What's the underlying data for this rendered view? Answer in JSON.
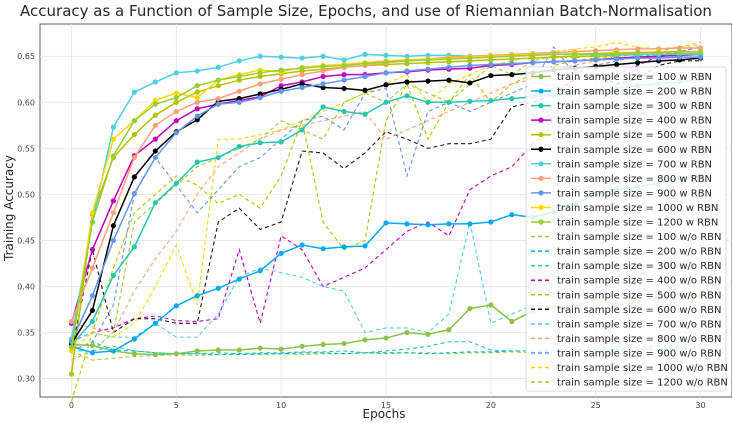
{
  "chart_data": {
    "type": "line",
    "title": "Accuracy as a Function of Sample Size, Epochs, and use of Riemannian Batch-Normalisation",
    "xlabel": "Epochs",
    "ylabel": "Training Accuracy",
    "xlim": [
      -1.5,
      31.5
    ],
    "ylim": [
      0.28,
      0.685
    ],
    "xticks": [
      0,
      5,
      10,
      15,
      20,
      25,
      30
    ],
    "yticks": [
      0.3,
      0.35,
      0.4,
      0.45,
      0.5,
      0.55,
      0.6,
      0.65
    ],
    "grid": true,
    "legend_position": "right",
    "x": [
      0,
      1,
      2,
      3,
      4,
      5,
      6,
      7,
      8,
      9,
      10,
      11,
      12,
      13,
      14,
      15,
      16,
      17,
      18,
      19,
      20,
      21,
      22,
      23,
      24,
      25,
      26,
      27,
      28,
      29,
      30
    ],
    "series": [
      {
        "name": "train sample size = 100 w RBN",
        "color": "#8bc34a",
        "style": "solid",
        "marker": true,
        "values": [
          0.337,
          0.336,
          0.33,
          0.327,
          0.326,
          0.327,
          0.33,
          0.331,
          0.331,
          0.333,
          0.332,
          0.335,
          0.337,
          0.338,
          0.342,
          0.344,
          0.35,
          0.348,
          0.353,
          0.376,
          0.38,
          0.362,
          0.373,
          0.378,
          0.379,
          0.385,
          0.38,
          0.384,
          0.388,
          0.392,
          0.39
        ]
      },
      {
        "name": "train sample size = 200 w RBN",
        "color": "#03a9f4",
        "style": "solid",
        "marker": true,
        "values": [
          0.335,
          0.328,
          0.33,
          0.343,
          0.36,
          0.379,
          0.39,
          0.398,
          0.408,
          0.417,
          0.436,
          0.445,
          0.441,
          0.443,
          0.444,
          0.469,
          0.468,
          0.467,
          0.468,
          0.468,
          0.47,
          0.478,
          0.475,
          0.481,
          0.49,
          0.5,
          0.505,
          0.508,
          0.512,
          0.518,
          0.52
        ]
      },
      {
        "name": "train sample size = 300 w RBN",
        "color": "#26c6b0",
        "style": "solid",
        "marker": true,
        "values": [
          0.336,
          0.362,
          0.412,
          0.443,
          0.491,
          0.512,
          0.535,
          0.54,
          0.552,
          0.556,
          0.557,
          0.57,
          0.595,
          0.59,
          0.587,
          0.6,
          0.607,
          0.6,
          0.6,
          0.601,
          0.602,
          0.604,
          0.606,
          0.608,
          0.61,
          0.612,
          0.615,
          0.618,
          0.62,
          0.622,
          0.625
        ]
      },
      {
        "name": "train sample size = 400 w RBN",
        "color": "#c000c0",
        "style": "solid",
        "marker": true,
        "values": [
          0.36,
          0.44,
          0.493,
          0.542,
          0.56,
          0.58,
          0.593,
          0.598,
          0.602,
          0.606,
          0.618,
          0.622,
          0.628,
          0.63,
          0.63,
          0.632,
          0.633,
          0.635,
          0.636,
          0.637,
          0.64,
          0.641,
          0.643,
          0.644,
          0.645,
          0.646,
          0.648,
          0.649,
          0.65,
          0.651,
          0.652
        ]
      },
      {
        "name": "train sample size = 500 w RBN",
        "color": "#b5c200",
        "style": "solid",
        "marker": true,
        "values": [
          0.305,
          0.478,
          0.54,
          0.565,
          0.586,
          0.6,
          0.611,
          0.618,
          0.624,
          0.628,
          0.631,
          0.634,
          0.636,
          0.638,
          0.64,
          0.641,
          0.642,
          0.643,
          0.644,
          0.645,
          0.646,
          0.647,
          0.648,
          0.649,
          0.65,
          0.65,
          0.651,
          0.652,
          0.652,
          0.653,
          0.653
        ]
      },
      {
        "name": "train sample size = 600 w RBN",
        "color": "#000000",
        "style": "solid",
        "marker": true,
        "values": [
          0.338,
          0.374,
          0.466,
          0.519,
          0.547,
          0.568,
          0.581,
          0.601,
          0.604,
          0.609,
          0.614,
          0.62,
          0.616,
          0.615,
          0.613,
          0.619,
          0.622,
          0.623,
          0.624,
          0.621,
          0.629,
          0.63,
          0.632,
          0.635,
          0.637,
          0.639,
          0.641,
          0.643,
          0.645,
          0.646,
          0.648
        ]
      },
      {
        "name": "train sample size = 700 w RBN",
        "color": "#4dd0e1",
        "style": "solid",
        "marker": true,
        "values": [
          0.343,
          0.47,
          0.573,
          0.611,
          0.622,
          0.632,
          0.634,
          0.638,
          0.645,
          0.65,
          0.649,
          0.648,
          0.65,
          0.646,
          0.652,
          0.651,
          0.65,
          0.651,
          0.651,
          0.65,
          0.651,
          0.651,
          0.652,
          0.652,
          0.652,
          0.652,
          0.652,
          0.652,
          0.652,
          0.652,
          0.652
        ]
      },
      {
        "name": "train sample size = 800 w RBN",
        "color": "#ffa07a",
        "style": "solid",
        "marker": true,
        "values": [
          0.362,
          0.42,
          0.48,
          0.54,
          0.575,
          0.59,
          0.6,
          0.604,
          0.612,
          0.62,
          0.625,
          0.63,
          0.634,
          0.638,
          0.64,
          0.643,
          0.645,
          0.647,
          0.649,
          0.65,
          0.651,
          0.652,
          0.653,
          0.654,
          0.655,
          0.656,
          0.657,
          0.658,
          0.658,
          0.659,
          0.659
        ]
      },
      {
        "name": "train sample size = 900 w RBN",
        "color": "#6495ed",
        "style": "solid",
        "marker": true,
        "values": [
          0.34,
          0.39,
          0.45,
          0.501,
          0.54,
          0.567,
          0.585,
          0.598,
          0.6,
          0.605,
          0.612,
          0.616,
          0.62,
          0.624,
          0.628,
          0.632,
          0.634,
          0.636,
          0.638,
          0.64,
          0.641,
          0.642,
          0.643,
          0.644,
          0.645,
          0.646,
          0.647,
          0.648,
          0.648,
          0.649,
          0.649
        ]
      },
      {
        "name": "train sample size = 1000 w RBN",
        "color": "#ffd700",
        "style": "solid",
        "marker": true,
        "values": [
          0.33,
          0.48,
          0.56,
          0.58,
          0.602,
          0.61,
          0.605,
          0.624,
          0.63,
          0.635,
          0.633,
          0.638,
          0.64,
          0.641,
          0.643,
          0.645,
          0.646,
          0.647,
          0.648,
          0.649,
          0.65,
          0.651,
          0.652,
          0.652,
          0.653,
          0.653,
          0.654,
          0.654,
          0.655,
          0.655,
          0.655
        ]
      },
      {
        "name": "train sample size = 1200 w RBN",
        "color": "#9acd32",
        "style": "solid",
        "marker": true,
        "values": [
          0.334,
          0.47,
          0.542,
          0.58,
          0.598,
          0.605,
          0.618,
          0.624,
          0.628,
          0.632,
          0.635,
          0.637,
          0.639,
          0.64,
          0.642,
          0.644,
          0.645,
          0.646,
          0.647,
          0.648,
          0.649,
          0.65,
          0.651,
          0.652,
          0.652,
          0.653,
          0.653,
          0.654,
          0.654,
          0.655,
          0.655
        ]
      },
      {
        "name": "train sample size = 100 w/o RBN",
        "color": "#9acd32",
        "style": "dashed",
        "marker": false,
        "values": [
          0.33,
          0.32,
          0.322,
          0.324,
          0.325,
          0.326,
          0.325,
          0.326,
          0.327,
          0.326,
          0.327,
          0.326,
          0.327,
          0.327,
          0.328,
          0.327,
          0.328,
          0.328,
          0.327,
          0.328,
          0.328,
          0.329,
          0.328,
          0.33,
          0.33,
          0.331,
          0.33,
          0.332,
          0.332,
          0.333,
          0.333
        ]
      },
      {
        "name": "train sample size = 200 w/o RBN",
        "color": "#03a9f4",
        "style": "dashed",
        "marker": false,
        "values": [
          0.33,
          0.34,
          0.331,
          0.33,
          0.328,
          0.327,
          0.327,
          0.326,
          0.326,
          0.327,
          0.327,
          0.328,
          0.328,
          0.327,
          0.328,
          0.328,
          0.328,
          0.327,
          0.328,
          0.329,
          0.329,
          0.33,
          0.33,
          0.33,
          0.331,
          0.331,
          0.331,
          0.332,
          0.332,
          0.333,
          0.333
        ]
      },
      {
        "name": "train sample size = 300 w/o RBN",
        "color": "#26c6b0",
        "style": "dashed",
        "marker": false,
        "values": [
          0.33,
          0.33,
          0.335,
          0.33,
          0.328,
          0.327,
          0.327,
          0.328,
          0.327,
          0.328,
          0.328,
          0.329,
          0.329,
          0.33,
          0.328,
          0.33,
          0.332,
          0.335,
          0.34,
          0.34,
          0.331,
          0.33,
          0.33,
          0.33,
          0.331,
          0.332,
          0.333,
          0.334,
          0.335,
          0.336,
          0.336
        ]
      },
      {
        "name": "train sample size = 400 w/o RBN",
        "color": "#c000c0",
        "style": "dashed",
        "marker": false,
        "values": [
          0.34,
          0.35,
          0.355,
          0.365,
          0.368,
          0.363,
          0.362,
          0.365,
          0.44,
          0.36,
          0.455,
          0.44,
          0.4,
          0.41,
          0.42,
          0.44,
          0.46,
          0.47,
          0.455,
          0.505,
          0.52,
          0.53,
          0.555,
          0.575,
          0.6,
          0.61,
          0.63,
          0.64,
          0.65,
          0.655,
          0.66
        ]
      },
      {
        "name": "train sample size = 500 w/o RBN",
        "color": "#b5c200",
        "style": "dashed",
        "marker": false,
        "values": [
          0.275,
          0.35,
          0.42,
          0.48,
          0.5,
          0.52,
          0.51,
          0.49,
          0.5,
          0.485,
          0.52,
          0.58,
          0.47,
          0.44,
          0.45,
          0.58,
          0.62,
          0.56,
          0.6,
          0.63,
          0.6,
          0.62,
          0.63,
          0.64,
          0.645,
          0.648,
          0.65,
          0.652,
          0.653,
          0.655,
          0.655
        ]
      },
      {
        "name": "train sample size = 600 w/o RBN",
        "color": "#1a1a1a",
        "style": "dashed",
        "marker": false,
        "values": [
          0.33,
          0.44,
          0.35,
          0.365,
          0.365,
          0.36,
          0.36,
          0.47,
          0.485,
          0.462,
          0.47,
          0.547,
          0.545,
          0.528,
          0.545,
          0.568,
          0.56,
          0.55,
          0.555,
          0.555,
          0.56,
          0.595,
          0.6,
          0.61,
          0.625,
          0.63,
          0.62,
          0.625,
          0.64,
          0.645,
          0.645
        ]
      },
      {
        "name": "train sample size = 700 w/o RBN",
        "color": "#4dd0e1",
        "style": "dashed",
        "marker": false,
        "values": [
          0.34,
          0.35,
          0.345,
          0.345,
          0.36,
          0.345,
          0.345,
          0.37,
          0.41,
          0.42,
          0.415,
          0.41,
          0.4,
          0.395,
          0.35,
          0.355,
          0.355,
          0.35,
          0.37,
          0.47,
          0.36,
          0.37,
          0.38,
          0.385,
          0.39,
          0.395,
          0.4,
          0.42,
          0.43,
          0.44,
          0.45
        ]
      },
      {
        "name": "train sample size = 800 w/o RBN",
        "color": "#ffa07a",
        "style": "dashed",
        "marker": false,
        "values": [
          0.36,
          0.355,
          0.35,
          0.395,
          0.43,
          0.46,
          0.5,
          0.53,
          0.545,
          0.56,
          0.57,
          0.575,
          0.58,
          0.585,
          0.59,
          0.56,
          0.57,
          0.58,
          0.59,
          0.6,
          0.61,
          0.62,
          0.625,
          0.635,
          0.64,
          0.645,
          0.648,
          0.65,
          0.655,
          0.66,
          0.665
        ]
      },
      {
        "name": "train sample size = 900 w/o RBN",
        "color": "#6495ed",
        "style": "dashed",
        "marker": false,
        "values": [
          0.33,
          0.34,
          0.38,
          0.5,
          0.54,
          0.51,
          0.48,
          0.505,
          0.53,
          0.54,
          0.56,
          0.58,
          0.585,
          0.57,
          0.61,
          0.615,
          0.52,
          0.59,
          0.6,
          0.59,
          0.6,
          0.61,
          0.62,
          0.66,
          0.63,
          0.64,
          0.645,
          0.65,
          0.648,
          0.655,
          0.66
        ]
      },
      {
        "name": "train sample size = 1000 w/o RBN",
        "color": "#ffd700",
        "style": "dashed",
        "marker": false,
        "values": [
          0.33,
          0.35,
          0.345,
          0.36,
          0.4,
          0.445,
          0.38,
          0.56,
          0.56,
          0.565,
          0.57,
          0.58,
          0.59,
          0.6,
          0.61,
          0.62,
          0.63,
          0.6,
          0.62,
          0.63,
          0.64,
          0.645,
          0.65,
          0.655,
          0.658,
          0.66,
          0.665,
          0.66,
          0.658,
          0.66,
          0.662
        ]
      },
      {
        "name": "train sample size = 1200 w/o RBN",
        "color": "#9acd32",
        "style": "dashed",
        "marker": false,
        "values": [
          0.32,
          0.33,
          0.35,
          0.47,
          0.49,
          0.51,
          0.53,
          0.54,
          0.55,
          0.56,
          0.58,
          0.57,
          0.56,
          0.6,
          0.61,
          0.6,
          0.62,
          0.61,
          0.6,
          0.62,
          0.64,
          0.63,
          0.645,
          0.65,
          0.648,
          0.652,
          0.655,
          0.65,
          0.652,
          0.655,
          0.655
        ]
      }
    ]
  }
}
